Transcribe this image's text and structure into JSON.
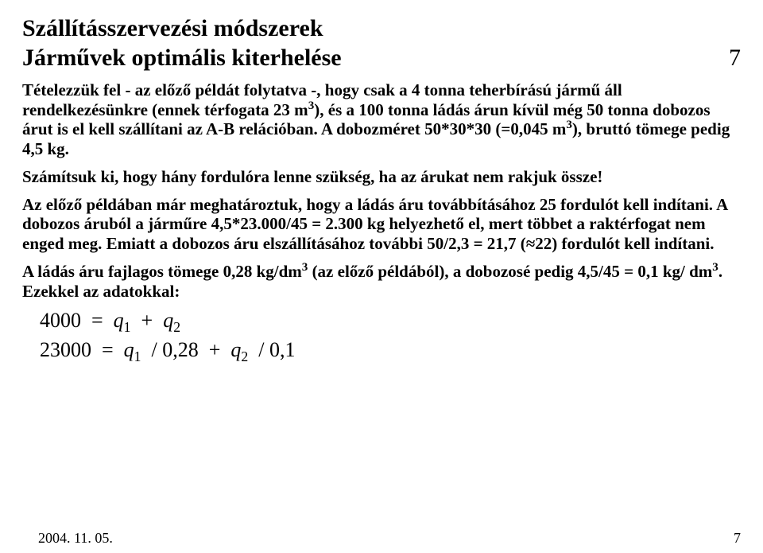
{
  "heading1": "Szállításszervezési módszerek",
  "heading2": "Járművek optimális kiterhelése",
  "page_top": "7",
  "p1_a": "Tételezzük fel - az előző példát folytatva -, hogy csak a 4 tonna teherbírású jármű áll rendelkezésünkre (ennek térfogata 23 m",
  "p1_a_sup": "3",
  "p1_b": "), és a 100 tonna ládás árun kívül még 50 tonna dobozos árut is el kell szállítani az A-B relációban. A dobozméret 50*30*30 (=0,045 m",
  "p1_b_sup": "3",
  "p1_c": "), bruttó tömege pedig 4,5 kg.",
  "p2": "Számítsuk ki, hogy hány fordulóra lenne szükség, ha az árukat nem rakjuk össze!",
  "p3": "Az előző példában már meghatároztuk, hogy a ládás áru továbbításához 25 fordulót kell indítani. A dobozos áruból a járműre 4,5*23.000/45 = 2.300 kg helyezhető el, mert többet a raktérfogat nem enged meg. Emiatt a dobozos áru elszállításához további 50/2,3 = 21,7 (≈22) fordulót kell indítani.",
  "p4_a": "A ládás áru fajlagos tömege 0,28 kg/dm",
  "p4_a_sup": "3",
  "p4_b": " (az előző példából), a dobozosé pedig 4,5/45 = 0,1 kg/ dm",
  "p4_b_sup": "3",
  "p4_c": ". Ezekkel az adatokkal:",
  "eq1_lhs": "4000",
  "eq1_eq": "=",
  "eq1_q": "q",
  "eq1_s1": "1",
  "eq1_plus": "+",
  "eq1_s2": "2",
  "eq2_lhs": "23000",
  "eq2_eq": "=",
  "eq2_q": "q",
  "eq2_s1": "1",
  "eq2_d1": "/ 0,28",
  "eq2_plus": "+",
  "eq2_s2": "2",
  "eq2_d2": "/ 0,1",
  "footer_date": "2004. 11. 05.",
  "footer_page": "7"
}
